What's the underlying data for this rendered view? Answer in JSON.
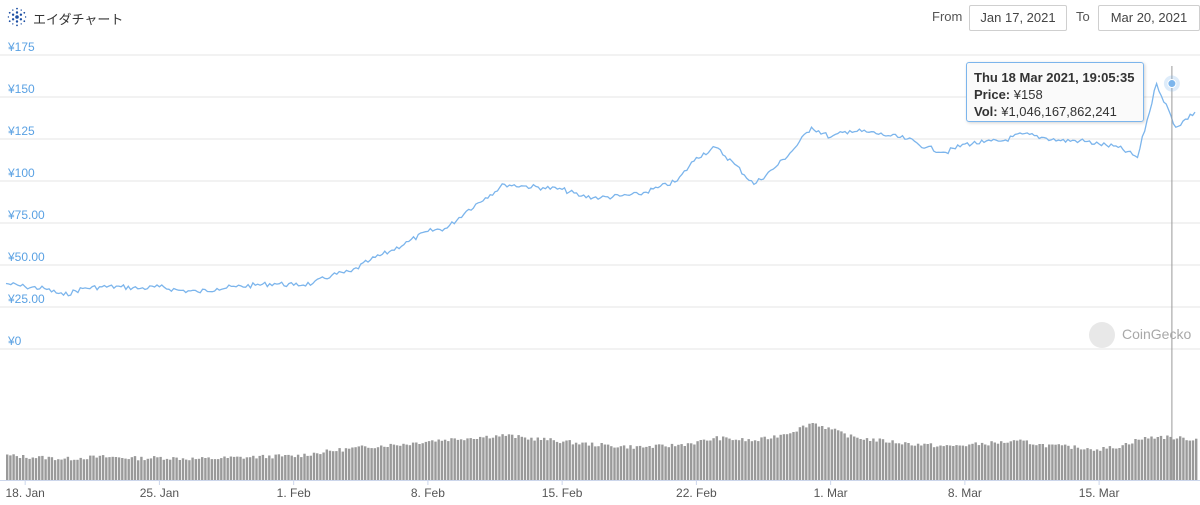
{
  "header": {
    "title": "エイダチャート",
    "from_label": "From",
    "from_value": "Jan 17, 2021",
    "to_label": "To",
    "to_value": "Mar 20, 2021"
  },
  "watermark": "CoinGecko",
  "tooltip": {
    "date": "Thu 18 Mar 2021, 19:05:35",
    "price_label": "Price:",
    "price_value": "¥158",
    "vol_label": "Vol:",
    "vol_value": "¥1,046,167,862,241"
  },
  "colors": {
    "price_line": "#7cb5ec",
    "volume_bars": "#9a9a9a",
    "grid": "#e6e6e6",
    "axis_label": "#5aa1e3"
  },
  "chart_data": {
    "type": "line",
    "x_start": "2021-01-17",
    "x_end": "2021-03-20",
    "x_ticks": [
      "18. Jan",
      "25. Jan",
      "1. Feb",
      "8. Feb",
      "15. Feb",
      "22. Feb",
      "1. Mar",
      "8. Mar",
      "15. Mar"
    ],
    "y_ticks": [
      "¥0",
      "¥25.00",
      "¥50.00",
      "¥75.00",
      "¥100",
      "¥125",
      "¥150",
      "¥175"
    ],
    "ylim": [
      0,
      175
    ],
    "grid": true,
    "series": [
      {
        "x": [
          "2021-01-17",
          "2021-01-18",
          "2021-01-19",
          "2021-01-20",
          "2021-01-21",
          "2021-01-22",
          "2021-01-23",
          "2021-01-24",
          "2021-01-25",
          "2021-01-26",
          "2021-01-27",
          "2021-01-28",
          "2021-01-29",
          "2021-01-30",
          "2021-01-31",
          "2021-02-01",
          "2021-02-02",
          "2021-02-03",
          "2021-02-04",
          "2021-02-05",
          "2021-02-06",
          "2021-02-07",
          "2021-02-08",
          "2021-02-09",
          "2021-02-10",
          "2021-02-11",
          "2021-02-12",
          "2021-02-13",
          "2021-02-14",
          "2021-02-15",
          "2021-02-16",
          "2021-02-17",
          "2021-02-18",
          "2021-02-19",
          "2021-02-20",
          "2021-02-21",
          "2021-02-22",
          "2021-02-23",
          "2021-02-24",
          "2021-02-25",
          "2021-02-26",
          "2021-02-27",
          "2021-02-28",
          "2021-03-01",
          "2021-03-02",
          "2021-03-03",
          "2021-03-04",
          "2021-03-05",
          "2021-03-06",
          "2021-03-07",
          "2021-03-08",
          "2021-03-09",
          "2021-03-10",
          "2021-03-11",
          "2021-03-12",
          "2021-03-13",
          "2021-03-14",
          "2021-03-15",
          "2021-03-16",
          "2021-03-17",
          "2021-03-18",
          "2021-03-19",
          "2021-03-20"
        ],
        "values": [
          39,
          37,
          36,
          32,
          36,
          37,
          37,
          36,
          37,
          35,
          34,
          36,
          37,
          38,
          39,
          38,
          39,
          44,
          46,
          53,
          58,
          64,
          70,
          72,
          82,
          90,
          98,
          97,
          96,
          95,
          91,
          90,
          91,
          92,
          96,
          100,
          114,
          120,
          110,
          98,
          107,
          118,
          132,
          126,
          130,
          129,
          127,
          125,
          120,
          117,
          122,
          123,
          124,
          128,
          126,
          124,
          124,
          122,
          120,
          114,
          158,
          132,
          141
        ]
      }
    ],
    "volume": [
      35,
      33,
      32,
      30,
      32,
      33,
      32,
      31,
      32,
      31,
      30,
      31,
      32,
      33,
      34,
      34,
      38,
      42,
      45,
      48,
      50,
      52,
      56,
      58,
      60,
      62,
      64,
      60,
      58,
      55,
      52,
      50,
      48,
      47,
      48,
      50,
      54,
      60,
      58,
      56,
      62,
      70,
      82,
      72,
      62,
      58,
      55,
      52,
      50,
      48,
      50,
      52,
      54,
      55,
      50,
      48,
      46,
      44,
      48,
      58,
      62,
      60,
      58
    ]
  }
}
